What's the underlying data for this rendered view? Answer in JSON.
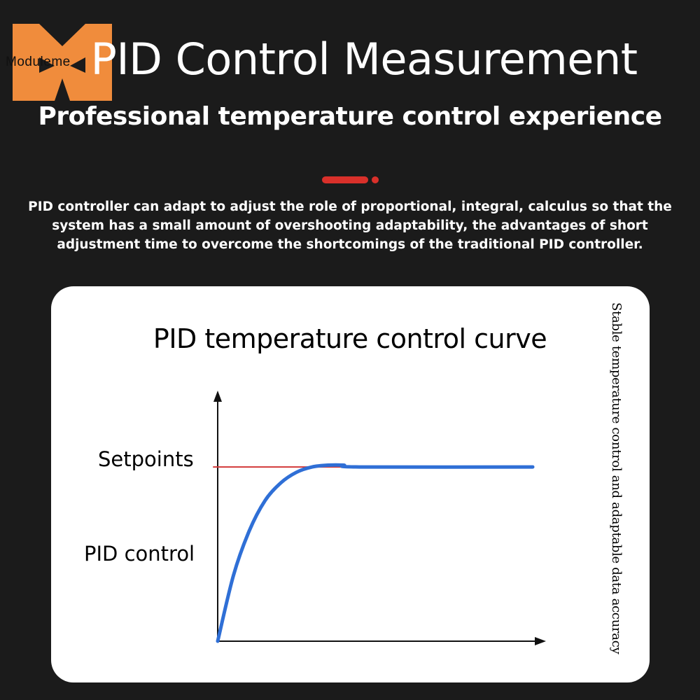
{
  "brand": {
    "name": "Moduleme",
    "colors": {
      "logo": "#f08c3c"
    }
  },
  "header": {
    "title": "PID Control Measurement",
    "subtitle": "Professional temperature control experience",
    "divider_color": "#d9302a"
  },
  "description": "PID controller can adapt to adjust the role of proportional, integral, calculus so that the system has a small amount of overshooting adaptability, the advantages of short adjustment time to overcome the shortcomings of the traditional PID controller.",
  "chart_data": {
    "type": "line",
    "title": "PID temperature control curve",
    "side_note": "Stable temperature control and adaptable data accuracy",
    "xlabel": "",
    "ylabel": "",
    "xlim": [
      0,
      1
    ],
    "ylim": [
      0,
      1
    ],
    "grid": false,
    "series": [
      {
        "name": "Setpoints",
        "color": "#d23a3a",
        "x": [
          0,
          1
        ],
        "y": [
          0.98,
          0.98
        ]
      },
      {
        "name": "PID control",
        "color": "#2f6fd6",
        "x": [
          0,
          0.05,
          0.1,
          0.15,
          0.2,
          0.25,
          0.3,
          0.35,
          0.4,
          0.45,
          1
        ],
        "y": [
          0,
          0.37,
          0.62,
          0.79,
          0.89,
          0.95,
          0.98,
          0.99,
          0.99,
          0.98,
          0.98
        ]
      }
    ]
  }
}
